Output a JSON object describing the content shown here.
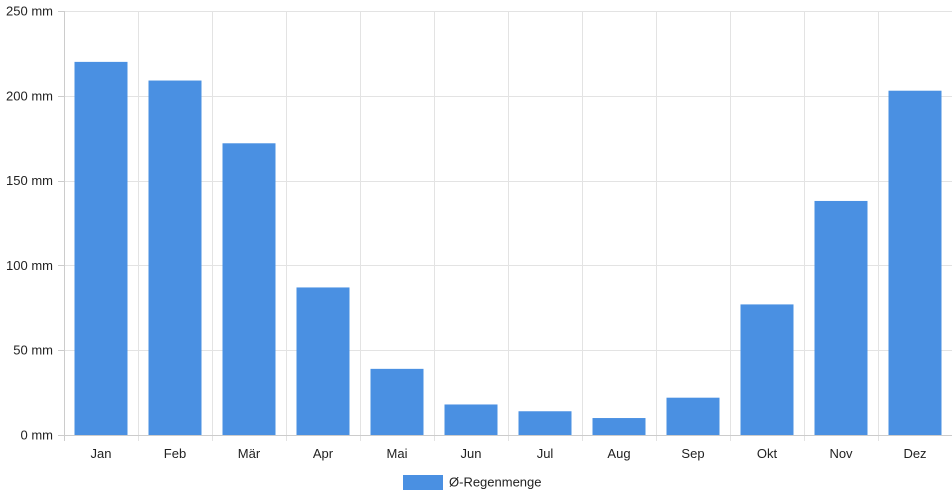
{
  "chart_data": {
    "type": "bar",
    "categories": [
      "Jan",
      "Feb",
      "Mär",
      "Apr",
      "Mai",
      "Jun",
      "Jul",
      "Aug",
      "Sep",
      "Okt",
      "Nov",
      "Dez"
    ],
    "series": [
      {
        "name": "Ø-Regenmenge",
        "color": "#4a90e2",
        "values": [
          220,
          209,
          172,
          87,
          39,
          18,
          14,
          10,
          22,
          77,
          138,
          203
        ]
      }
    ],
    "ylim": [
      0,
      250
    ],
    "yticks": [
      0,
      50,
      100,
      150,
      200,
      250
    ],
    "y_unit": "mm",
    "grid": true,
    "legend": "bottom-center"
  }
}
